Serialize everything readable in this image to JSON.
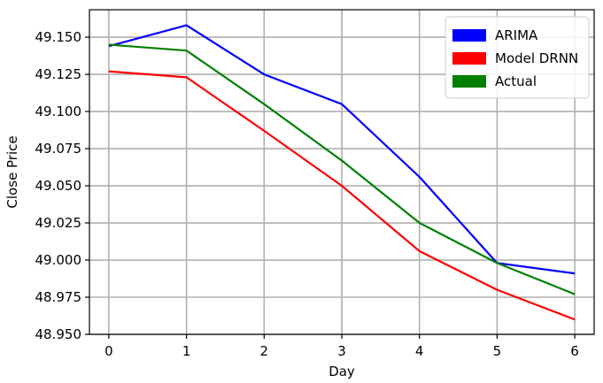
{
  "chart_data": {
    "type": "line",
    "x": [
      0,
      1,
      2,
      3,
      4,
      5,
      6
    ],
    "xlabel": "Day",
    "ylabel": "Close Price",
    "xlim": [
      -0.25,
      6.25
    ],
    "ylim": [
      48.95,
      49.1685
    ],
    "x_ticks": [
      "0",
      "1",
      "2",
      "3",
      "4",
      "5",
      "6"
    ],
    "y_ticks": [
      "48.950",
      "48.975",
      "49.000",
      "49.025",
      "49.050",
      "49.075",
      "49.100",
      "49.125",
      "49.150"
    ],
    "y_tick_values": [
      48.95,
      48.975,
      49.0,
      49.025,
      49.05,
      49.075,
      49.1,
      49.125,
      49.15
    ],
    "grid": true,
    "legend_position": "top-right",
    "series": [
      {
        "name": "ARIMA",
        "color": "#0000ff",
        "values": [
          49.144,
          49.158,
          49.125,
          49.105,
          49.056,
          48.998,
          48.991
        ]
      },
      {
        "name": "Model DRNN",
        "color": "#ff0000",
        "values": [
          49.127,
          49.123,
          49.087,
          49.05,
          49.006,
          48.98,
          48.96
        ]
      },
      {
        "name": "Actual",
        "color": "#008000",
        "values": [
          49.145,
          49.141,
          49.105,
          49.067,
          49.025,
          48.998,
          48.977
        ]
      }
    ]
  }
}
